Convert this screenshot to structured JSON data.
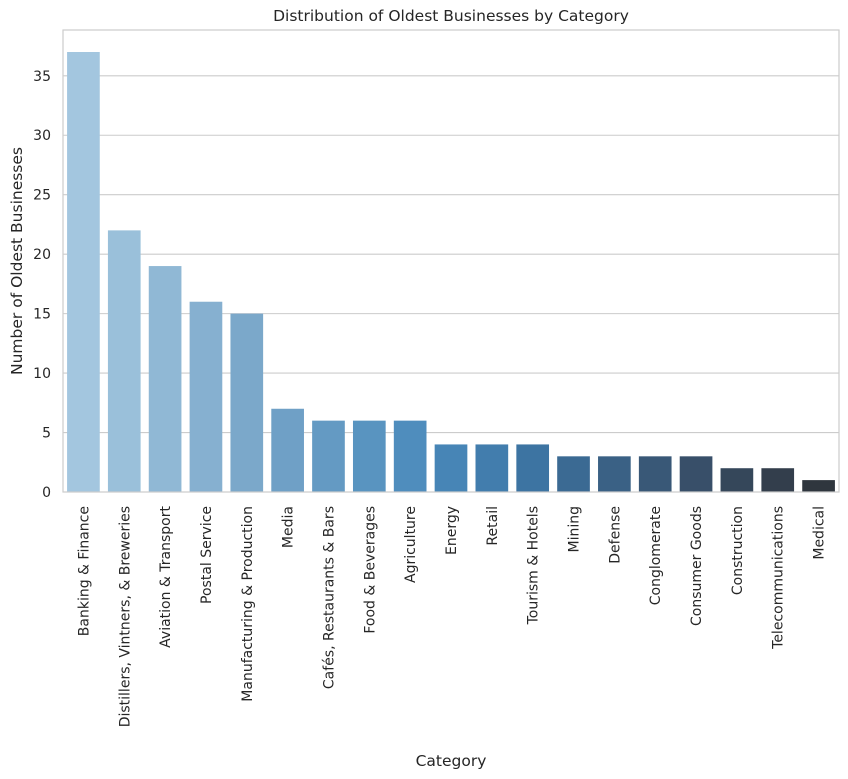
{
  "chart_data": {
    "type": "bar",
    "title": "Distribution of Oldest Businesses by Category",
    "xlabel": "Category",
    "ylabel": "Number of Oldest Businesses",
    "ylim": [
      0,
      38.85
    ],
    "yticks": [
      0,
      5,
      10,
      15,
      20,
      25,
      30,
      35
    ],
    "grid": "horizontal",
    "categories": [
      "Banking & Finance",
      "Distillers, Vintners, & Breweries",
      "Aviation & Transport",
      "Postal Service",
      "Manufacturing & Production",
      "Media",
      "Cafés, Restaurants & Bars",
      "Food & Beverages",
      "Agriculture",
      "Energy",
      "Retail",
      "Tourism & Hotels",
      "Mining",
      "Defense",
      "Conglomerate",
      "Consumer Goods",
      "Construction",
      "Telecommunications",
      "Medical"
    ],
    "values": [
      37,
      22,
      19,
      16,
      15,
      7,
      6,
      6,
      6,
      4,
      4,
      4,
      3,
      3,
      3,
      3,
      2,
      2,
      1
    ],
    "colors": [
      "#a3c6df",
      "#9ac0da",
      "#90b8d5",
      "#86b0d0",
      "#7ba8ca",
      "#6fa0c6",
      "#649ac3",
      "#5994c0",
      "#4f8dbd",
      "#4785b6",
      "#427dad",
      "#3d74a2",
      "#3b6a93",
      "#3a6185",
      "#395877",
      "#384f69",
      "#35475a",
      "#333e4c",
      "#2f363e"
    ]
  }
}
